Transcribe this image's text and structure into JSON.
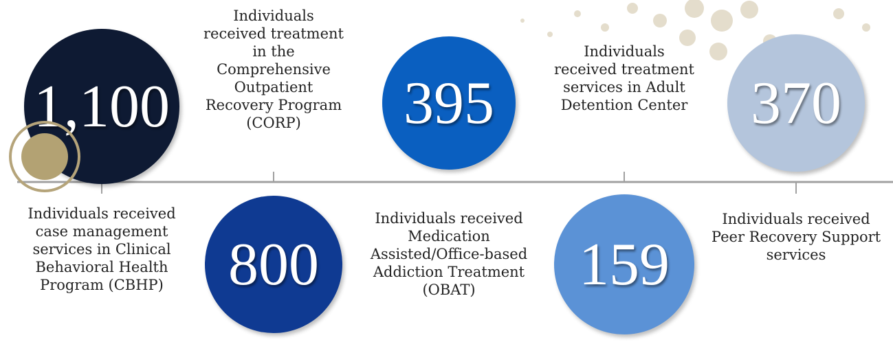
{
  "items": [
    {
      "value": "1,100",
      "description": "Individuals received case management services in Clinical Behavioral Health Program (CBHP)"
    },
    {
      "value": "800",
      "description": "Individuals received treatment in the Comprehensive Outpatient Recovery Program (CORP)"
    },
    {
      "value": "395",
      "description": "Individuals received Medication Assisted/Office-based Addiction Treatment (OBAT)"
    },
    {
      "value": "159",
      "description": "Individuals received treatment services in Adult Detention Center"
    },
    {
      "value": "370",
      "description": "Individuals received Peer Recovery Support services"
    }
  ]
}
